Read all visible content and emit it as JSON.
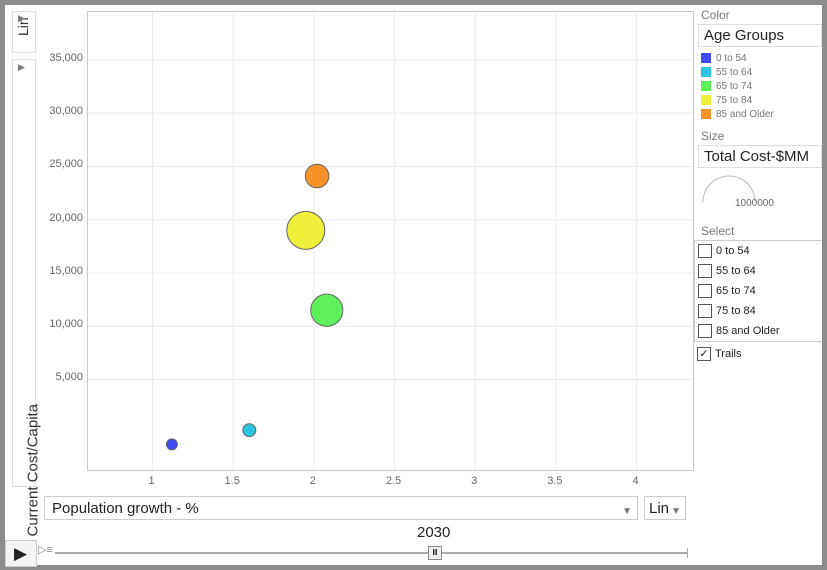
{
  "y_scale_label": "Lin",
  "x_scale_label": "Lin",
  "color_section": {
    "title": "Color",
    "value": "Age Groups"
  },
  "size_section": {
    "title": "Size",
    "value": "Total Cost-$MM",
    "legend_value": "1000000"
  },
  "select_section": {
    "title": "Select",
    "items": [
      "0 to 54",
      "55 to 64",
      "65 to 74",
      "75 to 84",
      "85 and Older"
    ]
  },
  "trails": {
    "label": "Trails",
    "checked": true
  },
  "year": "2030",
  "chart_data": {
    "type": "scatter",
    "xlabel": "Population growth - %",
    "ylabel": "Current Cost/Capita",
    "xlim": [
      0.6,
      4.35
    ],
    "ylim": [
      -3500,
      39500
    ],
    "xticks": [
      "1",
      "1.5",
      "2",
      "2.5",
      "3",
      "3.5",
      "4"
    ],
    "yticks": [
      "5,000",
      "10,000",
      "15,000",
      "20,000",
      "25,000",
      "30,000",
      "35,000"
    ],
    "ytick_values": [
      5000,
      10000,
      15000,
      20000,
      25000,
      30000,
      35000
    ],
    "xtick_values": [
      1,
      1.5,
      2,
      2.5,
      3,
      3.5,
      4
    ],
    "grid": true,
    "legend_title": "Age Groups",
    "series": [
      {
        "name": "0 to 54",
        "color": "#3c4cf0",
        "x": 1.12,
        "y": -1100,
        "size": 65000
      },
      {
        "name": "55 to 64",
        "color": "#2ec4e2",
        "x": 1.6,
        "y": 240,
        "size": 90000
      },
      {
        "name": "65 to 74",
        "color": "#5ef05a",
        "x": 2.08,
        "y": 11500,
        "size": 560000
      },
      {
        "name": "75 to 84",
        "color": "#eef03a",
        "x": 1.95,
        "y": 19000,
        "size": 780000
      },
      {
        "name": "85 and Older",
        "color": "#f7922a",
        "x": 2.02,
        "y": 24100,
        "size": 300000
      }
    ]
  }
}
